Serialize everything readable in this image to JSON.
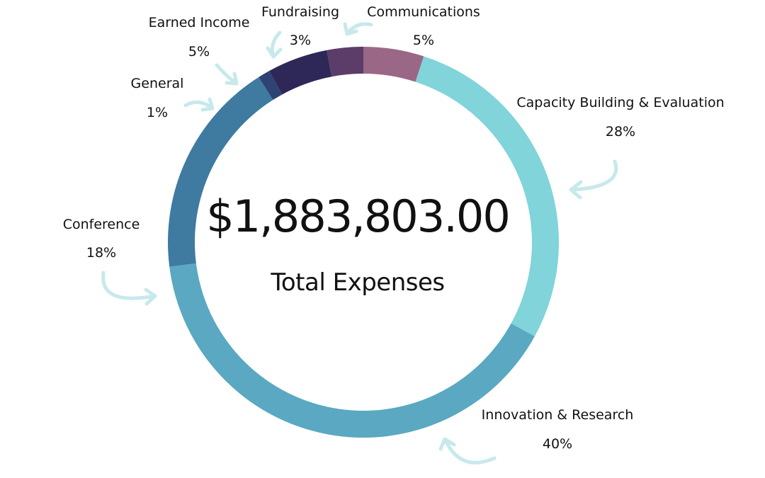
{
  "chart_data": {
    "type": "pie",
    "variant": "donut",
    "center": {
      "value": "$1,883,803.00",
      "label": "Total Expenses"
    },
    "slices": [
      {
        "name": "Communications",
        "value": 5,
        "label": "5%",
        "color": "#9a6886"
      },
      {
        "name": "Capacity Building & Evaluation",
        "value": 28,
        "label": "28%",
        "color": "#80d4da"
      },
      {
        "name": "Innovation & Research",
        "value": 40,
        "label": "40%",
        "color": "#5aa8c1"
      },
      {
        "name": "Conference",
        "value": 18,
        "label": "18%",
        "color": "#3f7aa0"
      },
      {
        "name": "General",
        "value": 1,
        "label": "1%",
        "color": "#2e4373"
      },
      {
        "name": "Earned Income",
        "value": 5,
        "label": "5%",
        "color": "#2d2857"
      },
      {
        "name": "Fundraising",
        "value": 3,
        "label": "3%",
        "color": "#5c3d69"
      }
    ],
    "arrow_color": "#c7e9ec"
  }
}
